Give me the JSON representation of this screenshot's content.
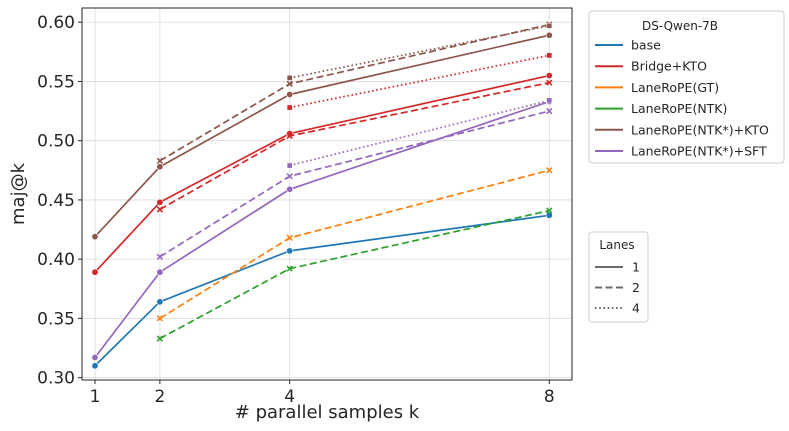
{
  "chart_data": {
    "type": "line",
    "title": "",
    "xlabel": "# parallel samples k",
    "ylabel": "maj@k",
    "x": [
      1,
      2,
      4,
      8
    ],
    "x_ticks": [
      "1",
      "2",
      "4",
      "8"
    ],
    "xlim": [
      0.8,
      8.35
    ],
    "ylim": [
      0.298,
      0.612
    ],
    "y_ticks": [
      "0.30",
      "0.35",
      "0.40",
      "0.45",
      "0.50",
      "0.55",
      "0.60"
    ],
    "grid": true,
    "legend_model": {
      "title": "DS-Qwen-7B",
      "placement": "outside-top-right",
      "entries": [
        {
          "label": "base",
          "color": "#1f77b4"
        },
        {
          "label": "Bridge+KTO",
          "color": "#d62728"
        },
        {
          "label": "LaneRoPE(GT)",
          "color": "#ff7f0e"
        },
        {
          "label": "LaneRoPE(NTK)",
          "color": "#2ca02c"
        },
        {
          "label": "LaneRoPE(NTK*)+KTO",
          "color": "#8c564b"
        },
        {
          "label": "LaneRoPE(NTK*)+SFT",
          "color": "#9467bd"
        }
      ]
    },
    "legend_lanes": {
      "title": "Lanes",
      "placement": "outside-middle-right",
      "entries": [
        {
          "label": "1",
          "style": "solid"
        },
        {
          "label": "2",
          "style": "dashed"
        },
        {
          "label": "4",
          "style": "dotted"
        }
      ]
    },
    "series": [
      {
        "model": "base",
        "lanes": "1",
        "color": "#1f77b4",
        "style": "solid",
        "marker": "circle",
        "points": [
          [
            1,
            0.31
          ],
          [
            2,
            0.364
          ],
          [
            4,
            0.407
          ],
          [
            8,
            0.437
          ]
        ]
      },
      {
        "model": "Bridge+KTO",
        "lanes": "1",
        "color": "#d62728",
        "style": "solid",
        "marker": "circle",
        "points": [
          [
            1,
            0.389
          ],
          [
            2,
            0.448
          ],
          [
            4,
            0.506
          ],
          [
            8,
            0.555
          ]
        ]
      },
      {
        "model": "Bridge+KTO",
        "lanes": "2",
        "color": "#d62728",
        "style": "dashed",
        "marker": "x",
        "points": [
          [
            2,
            0.442
          ],
          [
            4,
            0.504
          ],
          [
            8,
            0.549
          ]
        ]
      },
      {
        "model": "Bridge+KTO",
        "lanes": "4",
        "color": "#d62728",
        "style": "dotted",
        "marker": "square",
        "points": [
          [
            4,
            0.528
          ],
          [
            8,
            0.572
          ]
        ]
      },
      {
        "model": "LaneRoPE(GT)",
        "lanes": "2",
        "color": "#ff7f0e",
        "style": "dashed",
        "marker": "x",
        "points": [
          [
            2,
            0.35
          ],
          [
            4,
            0.418
          ],
          [
            8,
            0.475
          ]
        ]
      },
      {
        "model": "LaneRoPE(NTK)",
        "lanes": "2",
        "color": "#2ca02c",
        "style": "dashed",
        "marker": "x",
        "points": [
          [
            2,
            0.333
          ],
          [
            4,
            0.392
          ],
          [
            8,
            0.441
          ]
        ]
      },
      {
        "model": "LaneRoPE(NTK*)+KTO",
        "lanes": "1",
        "color": "#8c564b",
        "style": "solid",
        "marker": "circle",
        "points": [
          [
            1,
            0.419
          ],
          [
            2,
            0.478
          ],
          [
            4,
            0.539
          ],
          [
            8,
            0.589
          ]
        ]
      },
      {
        "model": "LaneRoPE(NTK*)+KTO",
        "lanes": "2",
        "color": "#8c564b",
        "style": "dashed",
        "marker": "x",
        "points": [
          [
            2,
            0.483
          ],
          [
            4,
            0.548
          ],
          [
            8,
            0.598
          ]
        ]
      },
      {
        "model": "LaneRoPE(NTK*)+KTO",
        "lanes": "4",
        "color": "#8c564b",
        "style": "dotted",
        "marker": "square",
        "points": [
          [
            4,
            0.553
          ],
          [
            8,
            0.597
          ]
        ]
      },
      {
        "model": "LaneRoPE(NTK*)+SFT",
        "lanes": "1",
        "color": "#9467bd",
        "style": "solid",
        "marker": "circle",
        "points": [
          [
            1,
            0.317
          ],
          [
            2,
            0.389
          ],
          [
            4,
            0.459
          ],
          [
            8,
            0.533
          ]
        ]
      },
      {
        "model": "LaneRoPE(NTK*)+SFT",
        "lanes": "2",
        "color": "#9467bd",
        "style": "dashed",
        "marker": "x",
        "points": [
          [
            2,
            0.402
          ],
          [
            4,
            0.47
          ],
          [
            8,
            0.525
          ]
        ]
      },
      {
        "model": "LaneRoPE(NTK*)+SFT",
        "lanes": "4",
        "color": "#9467bd",
        "style": "dotted",
        "marker": "square",
        "points": [
          [
            4,
            0.479
          ],
          [
            8,
            0.534
          ]
        ]
      }
    ]
  }
}
